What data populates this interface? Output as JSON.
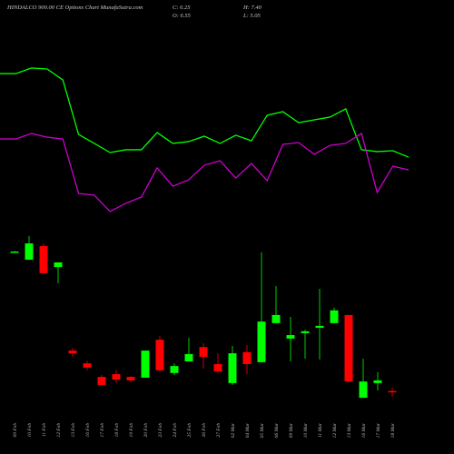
{
  "title": "HINDALCO 900.00 CE Options Chart MunafaSutra.com",
  "chart_data": [
    {
      "type": "line",
      "ylim": [
        0,
        100
      ],
      "series": [
        {
          "color": "#00ff00",
          "values": [
            88.3,
            88.3,
            91.7,
            91.1,
            84.4,
            51.1,
            45.6,
            40,
            41.7,
            41.7,
            52.2,
            45.6,
            46.7,
            50,
            45.6,
            50.6,
            47.2,
            62.8,
            65,
            58.3,
            60,
            61.7,
            66.7,
            41.7,
            40.6,
            41.1,
            37.2
          ]
        },
        {
          "color": "#cc00cc",
          "values": [
            48.3,
            48.3,
            51.7,
            49.4,
            48.3,
            15,
            13.9,
            3.9,
            8.9,
            12.8,
            30.6,
            19.4,
            23.3,
            32.2,
            35,
            24.4,
            33.3,
            22.8,
            45,
            46.1,
            38.9,
            44.4,
            45.6,
            51.7,
            15.6,
            31.7,
            29.4
          ]
        }
      ]
    },
    {
      "type": "candlestick",
      "info": {
        "close": "C: 6.25",
        "high": "H: 7.40",
        "open": "O: 6.55",
        "low": "L: 5.05"
      },
      "up_color": "#00ff00",
      "down_color": "#ff0000",
      "ylim": [
        4,
        47
      ],
      "categories": [
        "09 Feb",
        "10 Feb",
        "11 Feb",
        "12 Feb",
        "13 Feb",
        "16 Feb",
        "17 Feb",
        "18 Feb",
        "19 Feb",
        "20 Feb",
        "23 Feb",
        "24 Feb",
        "25 Feb",
        "26 Feb",
        "27 Feb",
        "02 Mar",
        "04 Mar",
        "05 Mar",
        "06 Mar",
        "09 Mar",
        "10 Mar",
        "11 Mar",
        "12 Mar",
        "13 Mar",
        "16 Mar",
        "17 Mar",
        "18 Mar"
      ],
      "open": [
        42.6,
        40.5,
        44.0,
        38.6,
        17.0,
        13.7,
        10.2,
        10.9,
        10.2,
        10.0,
        19.8,
        11.2,
        14.2,
        17.9,
        13.5,
        8.6,
        16.6,
        14.0,
        24.1,
        20.1,
        21.5,
        22.9,
        24.1,
        26.2,
        4.8,
        8.6,
        6.55
      ],
      "high": [
        42.8,
        46.6,
        44.7,
        39.8,
        17.7,
        14.4,
        10.7,
        11.9,
        10.4,
        17.0,
        20.8,
        13.7,
        20.3,
        18.9,
        16.3,
        18.2,
        18.4,
        42.4,
        33.7,
        25.7,
        22.4,
        33.0,
        28.1,
        26.2,
        14.9,
        11.4,
        7.4
      ],
      "low": [
        42.4,
        40.5,
        37.0,
        34.4,
        15.4,
        11.9,
        8.1,
        8.6,
        9.0,
        10.0,
        11.4,
        10.7,
        14.2,
        12.3,
        11.2,
        8.1,
        10.9,
        14.0,
        24.1,
        14.2,
        14.9,
        14.7,
        24.1,
        8.8,
        4.8,
        6.7,
        5.05
      ],
      "close": [
        42.6,
        44.7,
        37.0,
        39.8,
        16.3,
        12.6,
        8.1,
        9.5,
        9.3,
        17.0,
        11.9,
        13.0,
        16.1,
        15.4,
        11.6,
        16.3,
        13.5,
        24.5,
        26.2,
        21.0,
        22.0,
        23.4,
        27.4,
        9.0,
        9.0,
        9.3,
        6.25
      ]
    }
  ]
}
